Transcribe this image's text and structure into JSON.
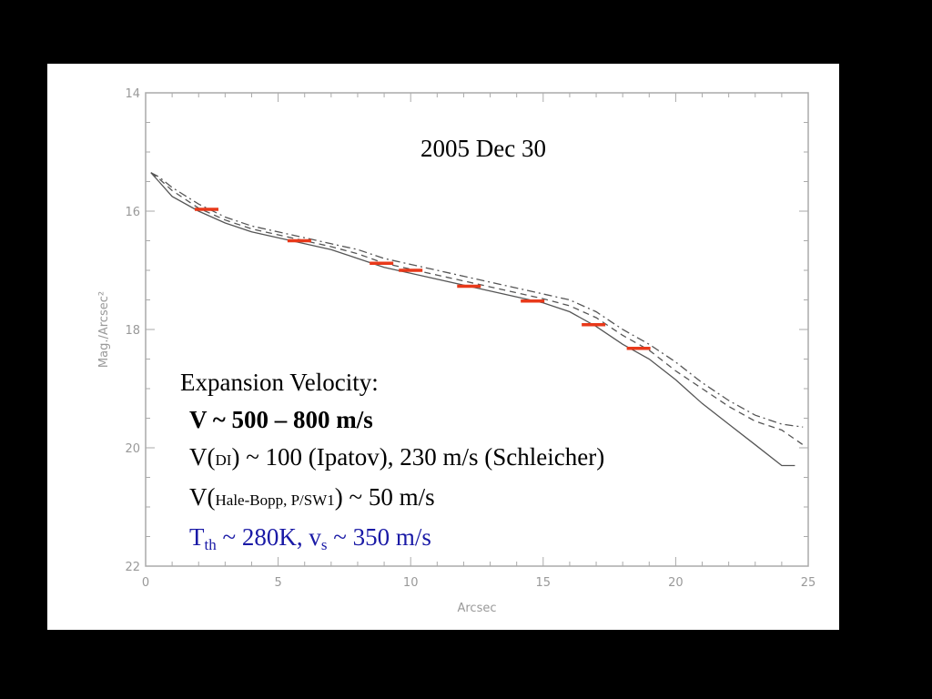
{
  "annotation": {
    "date": "2005 Dec 30",
    "heading": "Expansion Velocity:",
    "line1": "V ~ 500 – 800 m/s",
    "line2_prefix": "V(",
    "line2_sub": "DI",
    "line2_suffix": ") ~ 100 (Ipatov), 230 m/s (Schleicher)",
    "line3_prefix": "V(",
    "line3_sub": "Hale-Bopp, P/SW1",
    "line3_suffix": ") ~ 50 m/s",
    "line4_T": "T",
    "line4_T_sub": "th",
    "line4_mid": " ~ 280K, v",
    "line4_v_sub": "s",
    "line4_end": " ~ 350 m/s"
  },
  "colors": {
    "marker": "#e8391a",
    "curve": "#555555",
    "annotation_blue": "#1a1aa6"
  },
  "chart_data": {
    "type": "line",
    "xlabel": "Arcsec",
    "ylabel": "Mag./Arcsec²",
    "xlim": [
      0,
      25
    ],
    "ylim": [
      22,
      14
    ],
    "y_inverted": true,
    "xticks": [
      "0",
      "5",
      "10",
      "15",
      "20",
      "25"
    ],
    "yticks": [
      "14",
      "16",
      "18",
      "20",
      "22"
    ],
    "series": [
      {
        "style": "solid",
        "x": [
          0.2,
          0.5,
          1,
          2,
          3,
          4,
          5,
          6,
          7,
          8,
          9,
          10,
          11,
          12,
          13,
          14,
          15,
          16,
          17,
          18,
          19,
          20,
          21,
          22,
          23,
          24,
          24.5
        ],
        "y": [
          15.35,
          15.5,
          15.75,
          16.0,
          16.2,
          16.35,
          16.45,
          16.55,
          16.65,
          16.8,
          16.95,
          17.05,
          17.15,
          17.25,
          17.35,
          17.45,
          17.55,
          17.7,
          17.95,
          18.25,
          18.5,
          18.85,
          19.25,
          19.6,
          19.95,
          20.3,
          20.3
        ]
      },
      {
        "style": "dashed",
        "x": [
          0.2,
          0.5,
          1,
          2,
          3,
          4,
          5,
          6,
          7,
          8,
          9,
          10,
          11,
          12,
          13,
          14,
          15,
          16,
          17,
          18,
          19,
          20,
          21,
          22,
          23,
          24,
          24.8
        ],
        "y": [
          15.35,
          15.45,
          15.65,
          15.95,
          16.15,
          16.3,
          16.4,
          16.5,
          16.6,
          16.72,
          16.88,
          16.98,
          17.08,
          17.18,
          17.28,
          17.38,
          17.48,
          17.6,
          17.8,
          18.1,
          18.35,
          18.7,
          19.0,
          19.3,
          19.55,
          19.7,
          19.95
        ]
      },
      {
        "style": "dashdot",
        "x": [
          0.2,
          0.5,
          1,
          2,
          3,
          4,
          5,
          6,
          7,
          8,
          9,
          10,
          11,
          12,
          13,
          14,
          15,
          16,
          17,
          18,
          19,
          20,
          21,
          22,
          23,
          24,
          24.8
        ],
        "y": [
          15.35,
          15.42,
          15.6,
          15.88,
          16.1,
          16.25,
          16.35,
          16.45,
          16.55,
          16.65,
          16.8,
          16.9,
          17.0,
          17.1,
          17.2,
          17.3,
          17.4,
          17.5,
          17.7,
          18.0,
          18.25,
          18.55,
          18.9,
          19.2,
          19.45,
          19.6,
          19.65
        ]
      }
    ],
    "markers": [
      {
        "x": 2.3,
        "y": 15.97
      },
      {
        "x": 5.8,
        "y": 16.5
      },
      {
        "x": 8.9,
        "y": 16.88
      },
      {
        "x": 10.0,
        "y": 17.0
      },
      {
        "x": 12.2,
        "y": 17.27
      },
      {
        "x": 14.6,
        "y": 17.52
      },
      {
        "x": 16.9,
        "y": 17.92
      },
      {
        "x": 18.6,
        "y": 18.32
      }
    ]
  }
}
